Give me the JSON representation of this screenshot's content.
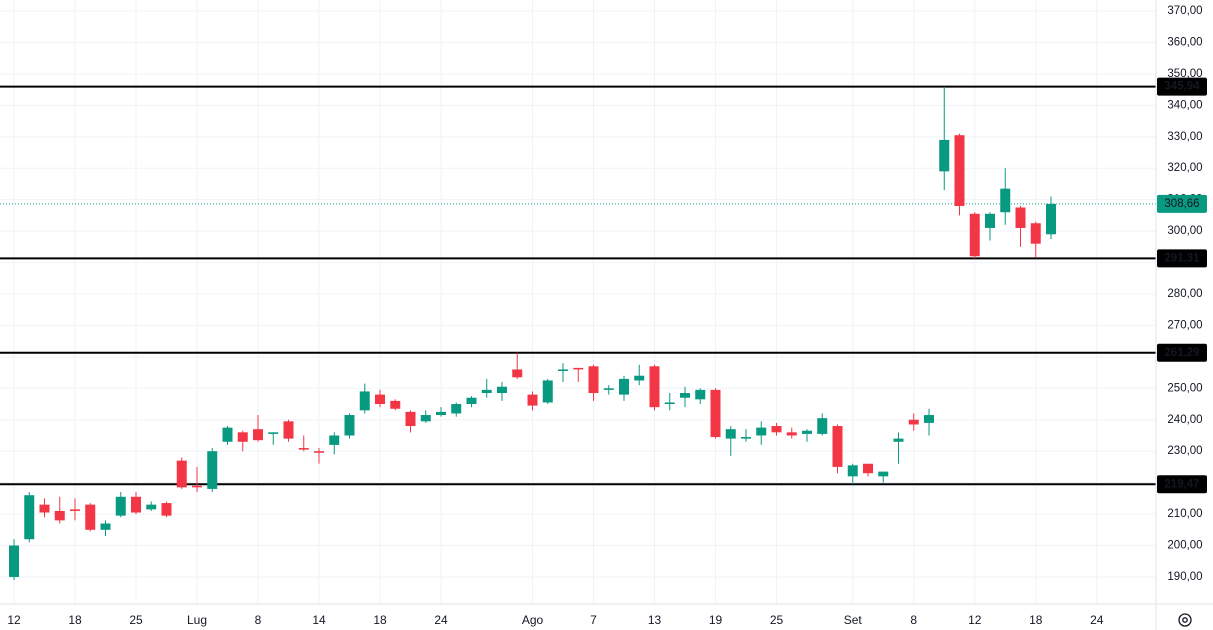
{
  "chart_data": {
    "type": "candlestick",
    "up_color": "#089981",
    "down_color": "#f23645",
    "grid": true,
    "categories": [
      "12",
      null,
      null,
      null,
      "18",
      null,
      null,
      null,
      "25",
      null,
      null,
      null,
      "Lug",
      null,
      null,
      null,
      "8",
      null,
      null,
      null,
      "14",
      null,
      null,
      null,
      "18",
      null,
      null,
      null,
      "24",
      null,
      null,
      null,
      null,
      null,
      "Ago",
      null,
      null,
      null,
      "7",
      null,
      null,
      null,
      "13",
      null,
      null,
      null,
      "19",
      null,
      null,
      null,
      "25",
      null,
      null,
      null,
      null,
      "Set",
      null,
      null,
      null,
      "8",
      null,
      null,
      null,
      "12",
      null,
      null,
      null,
      "18",
      null,
      null,
      null,
      "24"
    ],
    "open": [
      190,
      202,
      213,
      211,
      211.5,
      213,
      205,
      209.5,
      215.5,
      211.5,
      213.5,
      227,
      219,
      218,
      233,
      236,
      237,
      235.5,
      239.5,
      231,
      230,
      232,
      235,
      243,
      248,
      246,
      242.5,
      239.5,
      241.5,
      242,
      245,
      248.5,
      248.5,
      256,
      248,
      245.5,
      255.5,
      256.5,
      257,
      249.5,
      248,
      252.5,
      257,
      245,
      247,
      246.5,
      249.5,
      234,
      234,
      235,
      238,
      236,
      235.5,
      235.5,
      238,
      222,
      226,
      222,
      233,
      240,
      239,
      319,
      330.5,
      305.5,
      301,
      306,
      307.5,
      302.5,
      299,
      null,
      null,
      null
    ],
    "high": [
      202,
      217,
      215,
      215.5,
      215,
      213.5,
      208,
      217,
      217,
      214,
      214,
      228,
      225,
      231,
      238,
      236.5,
      241.5,
      236,
      240,
      235,
      231,
      236,
      242,
      251.5,
      249.5,
      246.5,
      243,
      243,
      244,
      245.5,
      247.5,
      253,
      252,
      261.29,
      249,
      253,
      258,
      256.5,
      257.5,
      251,
      254,
      257.5,
      257.5,
      248.5,
      250.5,
      250,
      250,
      238,
      237,
      239.5,
      239,
      237.5,
      237,
      242,
      238.5,
      226,
      226,
      223.5,
      236,
      242,
      243.5,
      345.94,
      331,
      306,
      306,
      320,
      308,
      303,
      311,
      null,
      null,
      null
    ],
    "low": [
      189,
      201,
      209,
      207,
      208,
      204.5,
      203,
      209,
      210,
      211,
      209,
      218,
      217,
      217,
      232,
      230,
      233,
      232,
      233,
      230,
      226,
      229,
      234,
      242,
      244,
      243,
      236,
      239,
      241,
      241,
      244,
      247,
      246,
      253,
      243,
      245,
      252,
      252,
      246,
      248,
      246,
      251,
      243,
      243,
      244,
      245,
      234,
      228.5,
      233,
      232,
      235,
      234,
      233,
      235,
      223,
      219.5,
      222,
      220,
      226,
      236.5,
      235,
      313,
      305,
      291.31,
      297,
      302,
      295,
      291.5,
      297.5,
      null,
      null,
      null
    ],
    "close": [
      200,
      216,
      210.5,
      208,
      211,
      205,
      207,
      215.5,
      210.5,
      213,
      209.5,
      218.5,
      218.5,
      230,
      237.5,
      233,
      233.5,
      236,
      234,
      230.5,
      229.5,
      235,
      241.5,
      249,
      245,
      243.5,
      238,
      241.5,
      242.5,
      245,
      247,
      249.5,
      250.5,
      253.5,
      244.5,
      252.5,
      256,
      256,
      248.5,
      250,
      253,
      254,
      244,
      245.5,
      248.5,
      249.5,
      234.5,
      237,
      234.5,
      237.5,
      236,
      235,
      236.5,
      240.5,
      225,
      225.5,
      223,
      223.5,
      234,
      238.5,
      241.5,
      329,
      308,
      292,
      305.5,
      313.5,
      301,
      296,
      308.66,
      null,
      null,
      null
    ],
    "ylim": [
      181.4,
      373.5
    ],
    "yticks": [
      {
        "value": 190,
        "label": "190,00"
      },
      {
        "value": 200,
        "label": "200,00"
      },
      {
        "value": 210,
        "label": "210,00"
      },
      {
        "value": 220,
        "label": "220,00"
      },
      {
        "value": 230,
        "label": "230,00"
      },
      {
        "value": 240,
        "label": "240,00"
      },
      {
        "value": 250,
        "label": "250,00"
      },
      {
        "value": 260,
        "label": "260,00"
      },
      {
        "value": 270,
        "label": "270,00"
      },
      {
        "value": 280,
        "label": "280,00"
      },
      {
        "value": 290,
        "label": "290,00"
      },
      {
        "value": 300,
        "label": "300,00"
      },
      {
        "value": 310,
        "label": "310,00"
      },
      {
        "value": 320,
        "label": "320,00"
      },
      {
        "value": 330,
        "label": "330,00"
      },
      {
        "value": 340,
        "label": "340,00"
      },
      {
        "value": 350,
        "label": "350,00"
      },
      {
        "value": 360,
        "label": "360,00"
      },
      {
        "value": 370,
        "label": "370,00"
      }
    ],
    "levels": [
      {
        "value": 345.94,
        "label": "345,94"
      },
      {
        "value": 291.31,
        "label": "291,31"
      },
      {
        "value": 261.29,
        "label": "261,29"
      },
      {
        "value": 219.47,
        "label": "219,47"
      }
    ],
    "last_price": {
      "value": 308.66,
      "label": "308,66"
    }
  }
}
